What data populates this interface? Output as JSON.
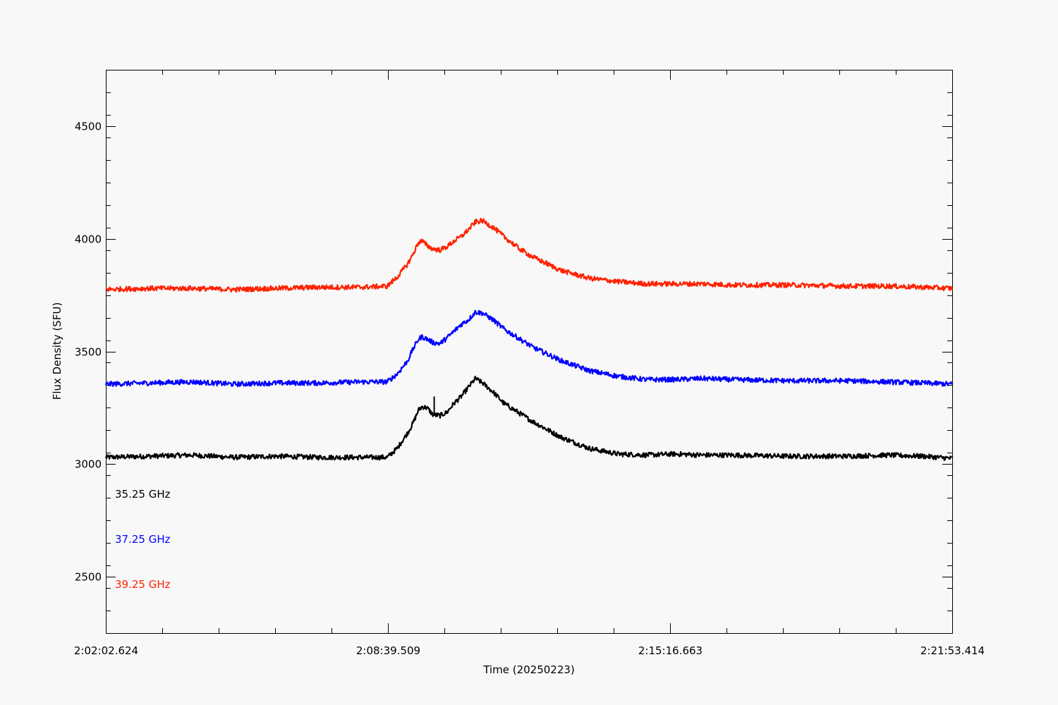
{
  "chart_data": {
    "type": "line",
    "title": "",
    "xlabel": "Time (20250223)",
    "ylabel": "Flux Density (SFU)",
    "x_unit": "seconds after 2:02:02.624",
    "xlim": [
      0,
      1190.79
    ],
    "ylim": [
      2250,
      4750
    ],
    "x_tick_labels": [
      "2:02:02.624",
      "2:08:39.509",
      "2:15:16.663",
      "2:21:53.414"
    ],
    "x_tick_values": [
      0,
      396.885,
      794.039,
      1190.79
    ],
    "y_ticks": [
      2500,
      3000,
      3500,
      4000,
      4500
    ],
    "grid": false,
    "legend_position": "bottom-left",
    "series": [
      {
        "name": "35.25 GHz",
        "color": "#000000",
        "x": [
          0,
          60,
          120,
          180,
          240,
          300,
          360,
          396,
          410,
          425,
          432,
          440,
          445,
          452,
          460,
          470,
          480,
          490,
          500,
          510,
          520,
          530,
          545,
          560,
          580,
          600,
          640,
          680,
          720,
          760,
          800,
          840,
          880,
          960,
          1040,
          1100,
          1150,
          1190.79
        ],
        "y": [
          3030,
          3035,
          3040,
          3030,
          3035,
          3030,
          3030,
          3030,
          3070,
          3140,
          3180,
          3240,
          3255,
          3250,
          3220,
          3215,
          3230,
          3270,
          3300,
          3340,
          3380,
          3360,
          3320,
          3270,
          3230,
          3190,
          3120,
          3070,
          3045,
          3040,
          3045,
          3040,
          3040,
          3035,
          3035,
          3040,
          3035,
          3025
        ],
        "peak_spike": [
          462,
          3300
        ]
      },
      {
        "name": "37.25 GHz",
        "color": "#0000ff",
        "x": [
          0,
          60,
          120,
          180,
          240,
          300,
          360,
          396,
          410,
          425,
          432,
          440,
          445,
          452,
          460,
          470,
          480,
          490,
          500,
          510,
          520,
          530,
          545,
          560,
          580,
          600,
          640,
          680,
          720,
          760,
          800,
          840,
          880,
          960,
          1040,
          1100,
          1150,
          1190.79
        ],
        "y": [
          3355,
          3360,
          3365,
          3355,
          3360,
          3360,
          3365,
          3365,
          3400,
          3460,
          3510,
          3555,
          3565,
          3555,
          3540,
          3535,
          3560,
          3590,
          3620,
          3640,
          3675,
          3670,
          3640,
          3600,
          3560,
          3520,
          3460,
          3415,
          3390,
          3375,
          3375,
          3380,
          3375,
          3370,
          3370,
          3365,
          3360,
          3355
        ]
      },
      {
        "name": "39.25 GHz",
        "color": "#ff2200",
        "x": [
          0,
          60,
          120,
          180,
          240,
          300,
          360,
          396,
          410,
          425,
          432,
          440,
          445,
          452,
          460,
          470,
          480,
          490,
          500,
          510,
          520,
          530,
          545,
          560,
          580,
          600,
          640,
          680,
          720,
          760,
          800,
          840,
          880,
          960,
          1040,
          1100,
          1150,
          1190.79
        ],
        "y": [
          3775,
          3780,
          3780,
          3775,
          3780,
          3785,
          3785,
          3790,
          3830,
          3890,
          3930,
          3985,
          3990,
          3970,
          3955,
          3950,
          3965,
          3990,
          4010,
          4040,
          4075,
          4080,
          4050,
          4010,
          3960,
          3920,
          3860,
          3825,
          3810,
          3800,
          3800,
          3800,
          3795,
          3795,
          3790,
          3790,
          3785,
          3780
        ]
      }
    ]
  }
}
